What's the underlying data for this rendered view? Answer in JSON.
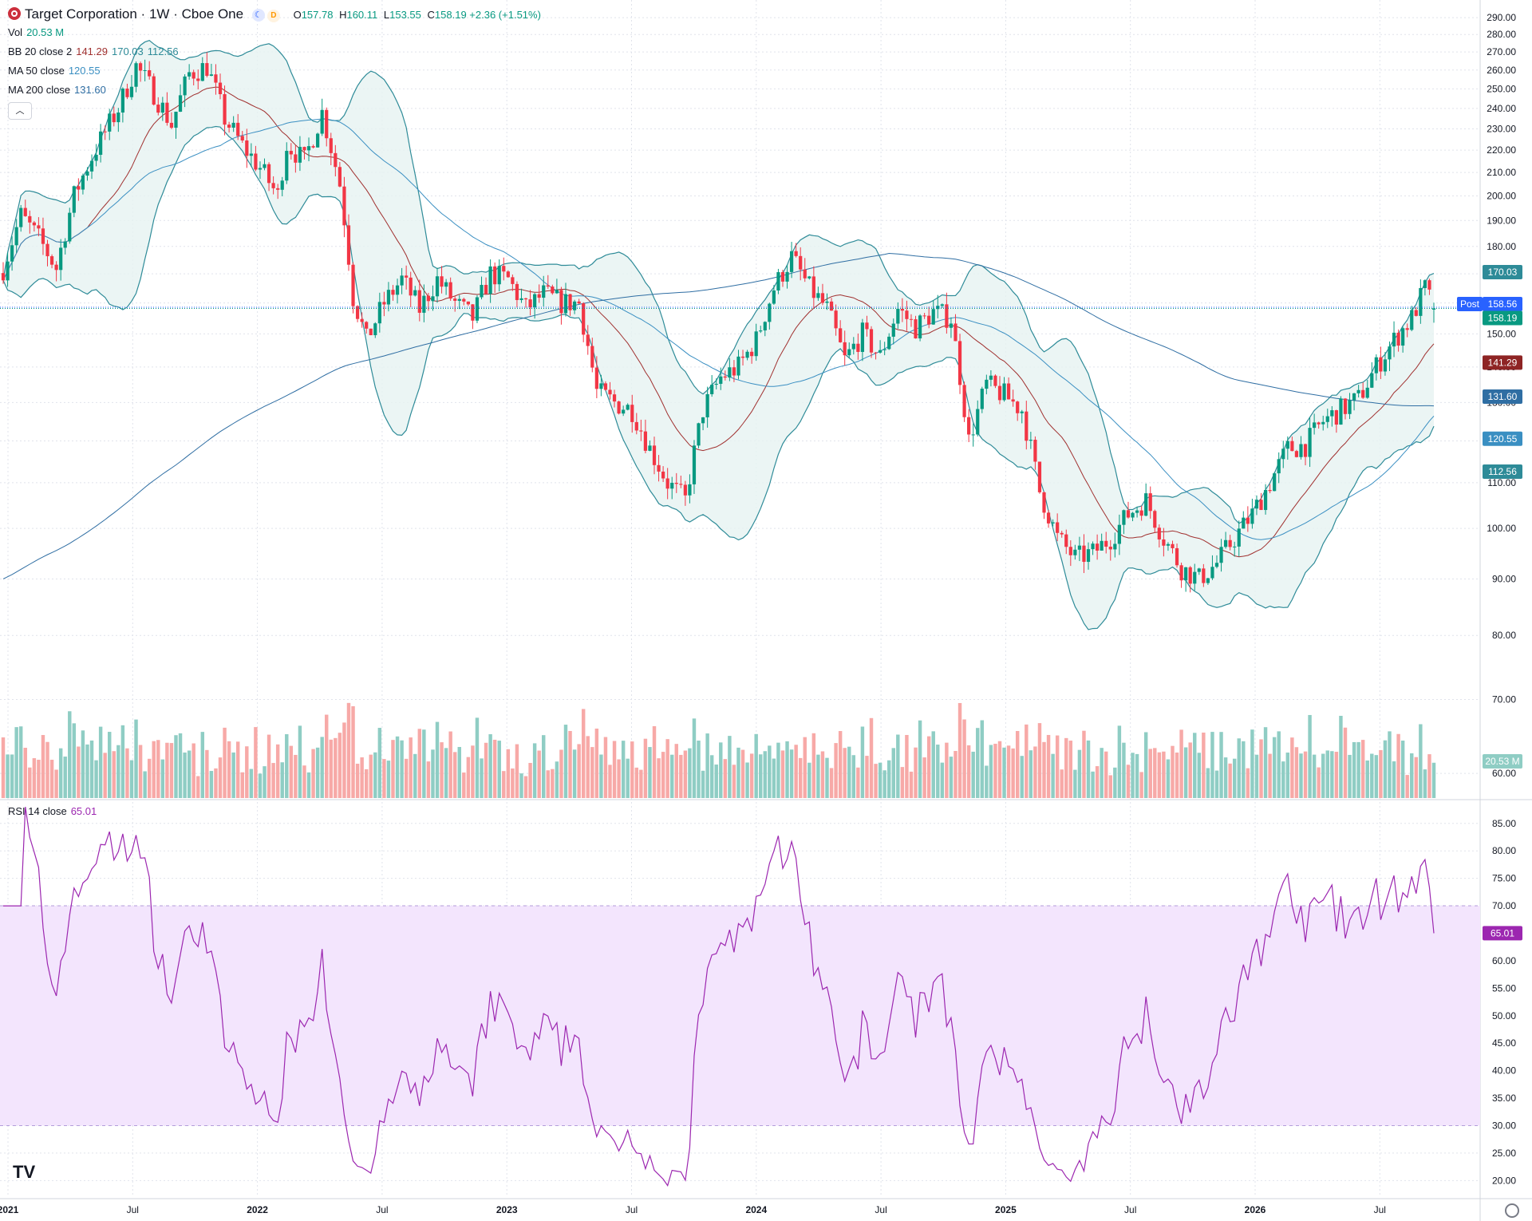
{
  "symbol": {
    "name": "Target Corporation",
    "interval": "1W",
    "exchange": "Cboe One",
    "title_sep": "·",
    "open_label": "O",
    "open": "157.78",
    "high_label": "H",
    "high": "160.11",
    "low_label": "L",
    "low": "153.55",
    "close_label": "C",
    "close": "158.19",
    "change": "+2.36 (+1.51%)",
    "delay_badge": "D"
  },
  "indicators": {
    "vol": {
      "label": "Vol",
      "value": "20.53 M"
    },
    "bb": {
      "label": "BB 20 close 2",
      "basis": "141.29",
      "upper": "170.03",
      "lower": "112.56"
    },
    "ma50": {
      "label": "MA 50 close",
      "value": "120.55"
    },
    "ma200": {
      "label": "MA 200 close",
      "value": "131.60"
    },
    "rsi": {
      "label": "RSI 14 close",
      "value": "65.01"
    }
  },
  "price_tags": {
    "post_label": "Post",
    "post_price": "158.56",
    "last_price": "158.19",
    "bb_upper": "170.03",
    "bb_basis": "141.29",
    "ma200": "131.60",
    "ma50": "120.55",
    "bb_lower": "112.56",
    "volume": "20.53 M",
    "rsi": "65.01"
  },
  "colors": {
    "up": "#089981",
    "down": "#f23645",
    "vol_up": "#8fcdc4",
    "vol_down": "#f7a9a7",
    "bb_line": "#2e8b98",
    "bb_fill": "#e6f2f1",
    "basis": "#a0302f",
    "ma50": "#3a8fc2",
    "ma200": "#2f6ea3",
    "rsi": "#9c27b0",
    "rsi_band": "#f3e5fd",
    "grid": "#e0e3eb",
    "text": "#131722",
    "axis_text": "#131722"
  },
  "chart_data": {
    "type": "candlestick",
    "title": "Target Corporation · 1W · Cboe One",
    "x_tick_labels": [
      "2021",
      "Jul",
      "2022",
      "Jul",
      "2023",
      "Jul",
      "2024",
      "Jul",
      "2025",
      "Jul",
      "2026",
      "Jul"
    ],
    "y_tick_labels": [
      "290.00",
      "280.00",
      "270.00",
      "260.00",
      "250.00",
      "240.00",
      "230.00",
      "220.00",
      "210.00",
      "200.00",
      "190.00",
      "180.00",
      "170.00",
      "160.00",
      "150.00",
      "140.00",
      "130.00",
      "120.00",
      "110.00",
      "100.00",
      "90.00",
      "80.00",
      "70.00",
      "60.00"
    ],
    "ylim": [
      57,
      292
    ],
    "rsi_ticks": [
      "85.00",
      "80.00",
      "75.00",
      "70.00",
      "65.00",
      "60.00",
      "55.00",
      "50.00",
      "45.00",
      "40.00",
      "35.00",
      "30.00",
      "25.00",
      "20.00"
    ],
    "rsi_lim": [
      17,
      87
    ],
    "rsi_band": [
      30,
      70
    ],
    "price_anchors": {
      "description": "approximate weekly close path (week index, price)",
      "points": [
        [
          0,
          172
        ],
        [
          4,
          192
        ],
        [
          8,
          183
        ],
        [
          12,
          172
        ],
        [
          16,
          200
        ],
        [
          20,
          217
        ],
        [
          26,
          240
        ],
        [
          30,
          262
        ],
        [
          34,
          248
        ],
        [
          38,
          232
        ],
        [
          42,
          258
        ],
        [
          46,
          262
        ],
        [
          50,
          235
        ],
        [
          54,
          222
        ],
        [
          58,
          212
        ],
        [
          62,
          200
        ],
        [
          64,
          223
        ],
        [
          68,
          215
        ],
        [
          72,
          238
        ],
        [
          76,
          205
        ],
        [
          79,
          162
        ],
        [
          82,
          148
        ],
        [
          86,
          160
        ],
        [
          90,
          168
        ],
        [
          94,
          158
        ],
        [
          98,
          168
        ],
        [
          102,
          160
        ],
        [
          106,
          155
        ],
        [
          110,
          170
        ],
        [
          114,
          168
        ],
        [
          118,
          158
        ],
        [
          122,
          163
        ],
        [
          126,
          160
        ],
        [
          130,
          160
        ],
        [
          134,
          133
        ],
        [
          138,
          130
        ],
        [
          142,
          128
        ],
        [
          146,
          118
        ],
        [
          150,
          110
        ],
        [
          154,
          106
        ],
        [
          158,
          128
        ],
        [
          162,
          137
        ],
        [
          166,
          140
        ],
        [
          170,
          148
        ],
        [
          174,
          165
        ],
        [
          178,
          176
        ],
        [
          182,
          165
        ],
        [
          186,
          158
        ],
        [
          190,
          142
        ],
        [
          194,
          150
        ],
        [
          198,
          143
        ],
        [
          202,
          158
        ],
        [
          206,
          152
        ],
        [
          210,
          157
        ],
        [
          214,
          155
        ],
        [
          218,
          120
        ],
        [
          222,
          135
        ],
        [
          226,
          132
        ],
        [
          230,
          128
        ],
        [
          234,
          108
        ],
        [
          238,
          98
        ],
        [
          242,
          94
        ],
        [
          246,
          95
        ],
        [
          250,
          98
        ],
        [
          254,
          103
        ],
        [
          258,
          106
        ],
        [
          262,
          98
        ],
        [
          266,
          92
        ],
        [
          270,
          90
        ],
        [
          274,
          93
        ],
        [
          278,
          98
        ],
        [
          282,
          103
        ],
        [
          286,
          110
        ],
        [
          290,
          118
        ],
        [
          294,
          119
        ],
        [
          298,
          125
        ],
        [
          302,
          128
        ],
        [
          306,
          131
        ],
        [
          310,
          140
        ],
        [
          314,
          148
        ],
        [
          318,
          155
        ],
        [
          321,
          165
        ],
        [
          323,
          158
        ]
      ]
    },
    "volume_unit": "M",
    "last_volume": 20.53
  },
  "footer": {
    "logo": "TV"
  }
}
